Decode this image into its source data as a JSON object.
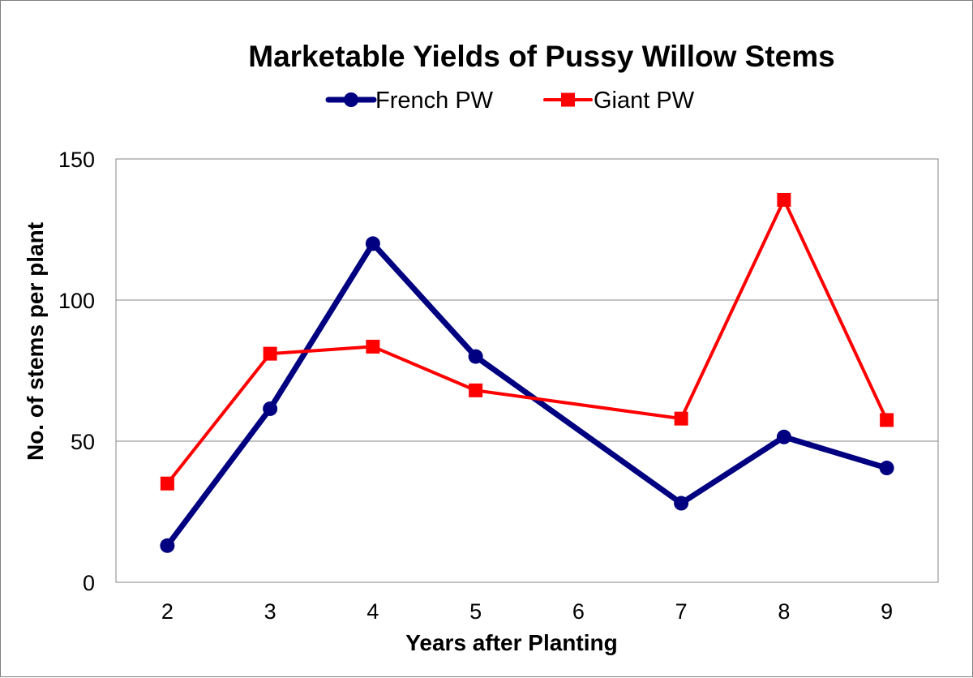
{
  "chart_data": {
    "type": "line",
    "title": "Marketable Yields of Pussy Willow Stems",
    "xlabel": "Years after Planting",
    "ylabel": "No. of stems per plant",
    "categories": [
      "2",
      "3",
      "4",
      "5",
      "6",
      "7",
      "8",
      "9"
    ],
    "ylim": [
      0,
      150
    ],
    "yticks": [
      0,
      50,
      100,
      150
    ],
    "grid": "horizontal",
    "legend_position": "top",
    "series": [
      {
        "name": "French PW",
        "color": "#000080",
        "marker": "circle",
        "values": [
          13,
          61.5,
          120,
          80,
          null,
          28,
          51.5,
          40.5
        ]
      },
      {
        "name": "Giant PW",
        "color": "#ff0000",
        "marker": "square",
        "values": [
          35,
          81,
          83.5,
          68,
          null,
          58,
          135.5,
          57.5
        ]
      }
    ]
  }
}
